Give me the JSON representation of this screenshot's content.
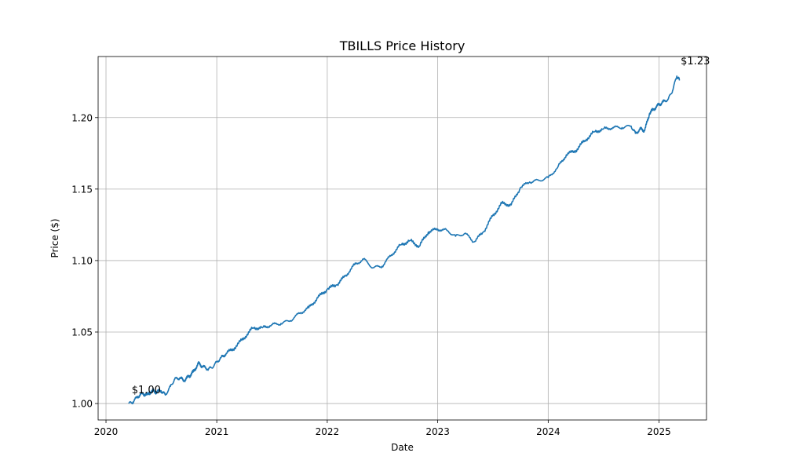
{
  "chart_data": {
    "type": "line",
    "title": "TBILLS Price History",
    "xlabel": "Date",
    "ylabel": "Price ($)",
    "xlim": [
      "2019-12-06",
      "2025-06-07"
    ],
    "ylim": [
      0.9885,
      1.2427
    ],
    "grid": true,
    "x_ticks": [
      "2020",
      "2021",
      "2022",
      "2023",
      "2024",
      "2025"
    ],
    "y_ticks": [
      "1.00",
      "1.05",
      "1.10",
      "1.15",
      "1.20"
    ],
    "annotations": [
      {
        "text": "$1.00",
        "x": "2020-03-18",
        "y": 1.0
      },
      {
        "text": "$1.23",
        "x": "2025-03-06",
        "y": 1.23
      }
    ],
    "line_color": "#1f77b4",
    "series": [
      {
        "x": [
          "2020-03-16",
          "2020-03-30",
          "2020-04-15",
          "2020-05-01",
          "2020-05-15",
          "2020-06-01",
          "2020-06-15",
          "2020-07-01",
          "2020-07-15",
          "2020-08-01",
          "2020-08-15",
          "2020-09-01",
          "2020-09-15",
          "2020-10-01",
          "2020-10-15",
          "2020-11-01",
          "2020-11-15",
          "2020-12-01",
          "2020-12-15",
          "2021-01-01",
          "2021-01-15",
          "2021-02-01",
          "2021-03-01",
          "2021-04-01",
          "2021-05-01",
          "2021-06-01",
          "2021-07-01",
          "2021-08-01",
          "2021-09-01",
          "2021-10-01",
          "2021-11-01",
          "2021-12-01",
          "2022-01-01",
          "2022-02-01",
          "2022-03-01",
          "2022-04-01",
          "2022-05-01",
          "2022-06-01",
          "2022-07-01",
          "2022-08-01",
          "2022-09-01",
          "2022-10-01",
          "2022-11-01",
          "2022-12-01",
          "2023-01-01",
          "2023-02-01",
          "2023-03-01",
          "2023-04-01",
          "2023-05-01",
          "2023-06-01",
          "2023-07-01",
          "2023-08-01",
          "2023-09-01",
          "2023-10-01",
          "2023-11-01",
          "2023-12-01",
          "2024-01-01",
          "2024-02-01",
          "2024-03-01",
          "2024-04-01",
          "2024-05-01",
          "2024-06-01",
          "2024-07-01",
          "2024-08-01",
          "2024-09-01",
          "2024-10-01",
          "2024-10-15",
          "2024-11-01",
          "2024-11-15",
          "2024-12-01",
          "2024-12-15",
          "2025-01-01",
          "2025-01-15",
          "2025-02-01",
          "2025-02-15",
          "2025-03-01",
          "2025-03-10"
        ],
        "y": [
          1.0,
          1.001,
          1.005,
          1.007,
          1.006,
          1.009,
          1.008,
          1.009,
          1.006,
          1.012,
          1.017,
          1.018,
          1.016,
          1.019,
          1.022,
          1.028,
          1.026,
          1.024,
          1.025,
          1.029,
          1.032,
          1.035,
          1.039,
          1.046,
          1.053,
          1.053,
          1.055,
          1.056,
          1.058,
          1.063,
          1.067,
          1.074,
          1.08,
          1.083,
          1.089,
          1.097,
          1.101,
          1.095,
          1.096,
          1.104,
          1.111,
          1.114,
          1.11,
          1.12,
          1.122,
          1.121,
          1.117,
          1.119,
          1.113,
          1.12,
          1.131,
          1.14,
          1.139,
          1.151,
          1.155,
          1.156,
          1.158,
          1.165,
          1.174,
          1.177,
          1.184,
          1.19,
          1.192,
          1.193,
          1.193,
          1.194,
          1.189,
          1.192,
          1.191,
          1.203,
          1.206,
          1.209,
          1.211,
          1.213,
          1.219,
          1.229,
          1.226
        ]
      }
    ]
  }
}
